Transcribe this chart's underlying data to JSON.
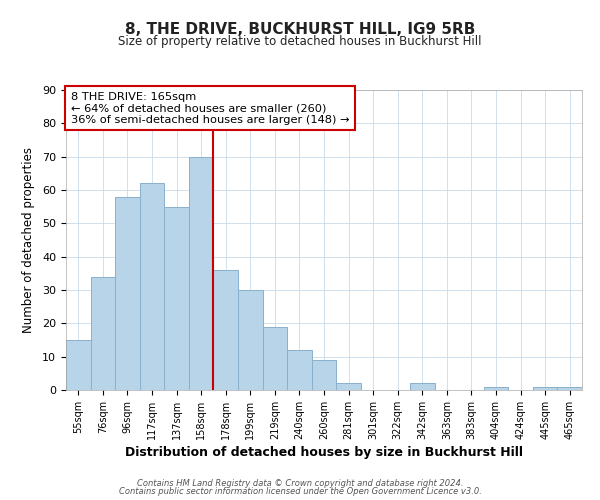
{
  "title": "8, THE DRIVE, BUCKHURST HILL, IG9 5RB",
  "subtitle": "Size of property relative to detached houses in Buckhurst Hill",
  "xlabel": "Distribution of detached houses by size in Buckhurst Hill",
  "ylabel": "Number of detached properties",
  "bar_labels": [
    "55sqm",
    "76sqm",
    "96sqm",
    "117sqm",
    "137sqm",
    "158sqm",
    "178sqm",
    "199sqm",
    "219sqm",
    "240sqm",
    "260sqm",
    "281sqm",
    "301sqm",
    "322sqm",
    "342sqm",
    "363sqm",
    "383sqm",
    "404sqm",
    "424sqm",
    "445sqm",
    "465sqm"
  ],
  "bar_values": [
    15,
    34,
    58,
    62,
    55,
    70,
    36,
    30,
    19,
    12,
    9,
    2,
    0,
    0,
    2,
    0,
    0,
    1,
    0,
    1,
    1
  ],
  "bar_color": "#b8d4e8",
  "bar_edge_color": "#8ab0cc",
  "vline_x": 5.5,
  "vline_color": "#cc0000",
  "ylim": [
    0,
    90
  ],
  "yticks": [
    0,
    10,
    20,
    30,
    40,
    50,
    60,
    70,
    80,
    90
  ],
  "annotation_title": "8 THE DRIVE: 165sqm",
  "annotation_line1": "← 64% of detached houses are smaller (260)",
  "annotation_line2": "36% of semi-detached houses are larger (148) →",
  "annotation_box_color": "#ffffff",
  "annotation_box_edge": "#cc0000",
  "footer1": "Contains HM Land Registry data © Crown copyright and database right 2024.",
  "footer2": "Contains public sector information licensed under the Open Government Licence v3.0."
}
